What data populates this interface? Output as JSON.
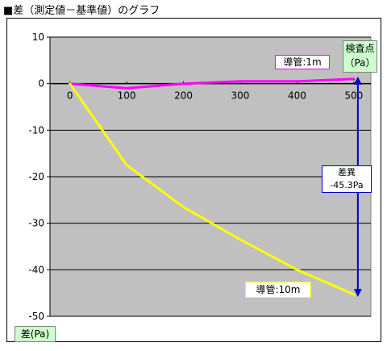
{
  "title": "■差（測定値－基準値）のグラフ",
  "colors": {
    "plot_bg": "#c0c0c0",
    "grid": "#000000",
    "series_1m": "#ff00ff",
    "series_10m": "#ffff00",
    "arrow": "#0000cc",
    "label_bg": "#ccffcc"
  },
  "chart_data": {
    "type": "line",
    "ylabel": "差(Pa)",
    "ylim": [
      -50,
      10
    ],
    "yticks": [
      10,
      0,
      -10,
      -20,
      -30,
      -40,
      -50
    ],
    "xlim": [
      -35,
      530
    ],
    "xticks": [
      0,
      100,
      200,
      300,
      400,
      500
    ],
    "x_axis_at_y": 0,
    "grid": true,
    "series": [
      {
        "name": "導管:1m",
        "x": [
          0,
          100,
          200,
          300,
          400,
          500
        ],
        "values": [
          0,
          -1,
          0,
          0.5,
          0.5,
          1
        ]
      },
      {
        "name": "導管:10m",
        "x": [
          0,
          100,
          200,
          300,
          400,
          500
        ],
        "values": [
          0,
          -17.5,
          -26.5,
          -33.5,
          -40,
          -45.3
        ]
      }
    ],
    "annotations": {
      "unit": [
        "検査点",
        "（Pa）"
      ],
      "difference": [
        "差異",
        "-45.3Pa"
      ]
    }
  }
}
